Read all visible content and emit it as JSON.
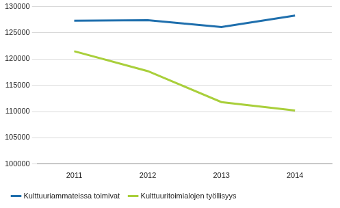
{
  "chart_data": {
    "type": "line",
    "categories": [
      "2011",
      "2012",
      "2013",
      "2014"
    ],
    "series": [
      {
        "name": "Kulttuuriammateissa toimivat",
        "color": "#1f6fad",
        "values": [
          127300,
          127400,
          126100,
          128300
        ]
      },
      {
        "name": "Kulttuuritoimialojen työllisyys",
        "color": "#a9cf3b",
        "values": [
          121500,
          117700,
          111800,
          110200
        ]
      }
    ],
    "ylim": [
      100000,
      130000
    ],
    "yticks": [
      100000,
      105000,
      110000,
      115000,
      120000,
      125000,
      130000
    ],
    "grid": true,
    "legend": "bottom"
  }
}
